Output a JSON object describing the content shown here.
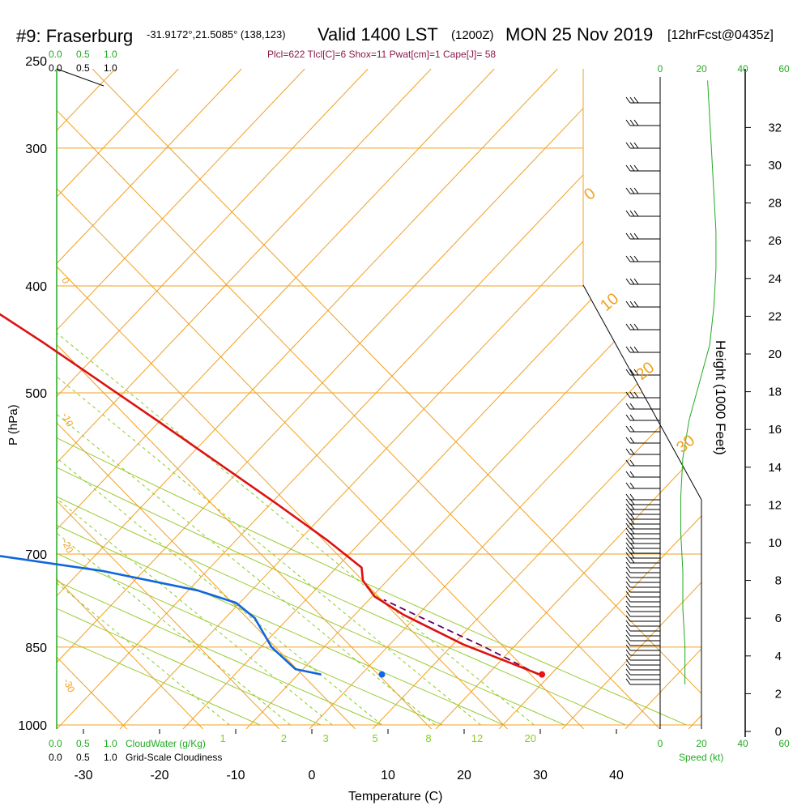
{
  "header": {
    "station": "#9: Fraserburg",
    "coords": "-31.9172°,21.5085° (138,123)",
    "valid": "Valid 1400 LST",
    "zulu": "(1200Z)",
    "date": "MON 25 Nov 2019",
    "forecast": "[12hrFcst@0435z]",
    "indices": "Plcl=622 Tlcl[C]=6 Shox=11 Pwat[cm]=1 Cape[J]= 58"
  },
  "chart_data": {
    "type": "line",
    "xlabel": "Temperature (C)",
    "ylabel": "P (hPa)",
    "right_axis_label": "Height (1000 Feet)",
    "xlim": [
      -35,
      35
    ],
    "x_ticks": [
      "-30",
      "-20",
      "-10",
      "0",
      "10",
      "20",
      "30",
      "40"
    ],
    "p_ticks": [
      "250",
      "300",
      "400",
      "500",
      "700",
      "850",
      "1000"
    ],
    "height_ticks": [
      "0",
      "2",
      "4",
      "6",
      "8",
      "10",
      "12",
      "14",
      "16",
      "18",
      "20",
      "22",
      "24",
      "26",
      "28",
      "30",
      "32"
    ],
    "isotherm_labels": [
      "-30",
      "-20",
      "-10",
      "0",
      "10",
      "20",
      "30"
    ],
    "mixing_ratio_labels": [
      "1",
      "2",
      "3",
      "5",
      "8",
      "12",
      "20"
    ],
    "top_scale_green": [
      "0.0",
      "0.5",
      "1.0"
    ],
    "top_scale_black": [
      "0.0",
      "0.5",
      "1.0"
    ],
    "bottom_scale_green": [
      "0.0",
      "0.5",
      "1.0"
    ],
    "bottom_scale_black": [
      "0.0",
      "0.5",
      "1.0"
    ],
    "cloudwater_label": "CloudWater (g/Kg)",
    "cloudiness_label": "Grid-Scale Cloudiness",
    "speed_ticks": [
      "0",
      "20",
      "40",
      "60"
    ],
    "speed_label": "Speed (kt)",
    "temperature": {
      "color": "#dd1111",
      "points": [
        [
          31.2,
          900
        ],
        [
          25,
          845
        ],
        [
          21,
          795
        ],
        [
          19.5,
          765
        ],
        [
          20,
          740
        ],
        [
          21.5,
          720
        ],
        [
          20.5,
          680
        ],
        [
          18.5,
          630
        ],
        [
          13.5,
          530
        ],
        [
          8.5,
          450
        ],
        [
          3,
          385
        ],
        [
          -4.5,
          315
        ],
        [
          -8.5,
          280
        ]
      ]
    },
    "dewpoint": {
      "color": "#1166dd",
      "points": [
        [
          2.5,
          900
        ],
        [
          -0.2,
          890
        ],
        [
          -0.5,
          850
        ],
        [
          1,
          800
        ],
        [
          0.5,
          775
        ],
        [
          -3,
          755
        ],
        [
          -13,
          725
        ],
        [
          -26,
          700
        ],
        [
          -25,
          680
        ],
        [
          -27,
          650
        ],
        [
          -30,
          600
        ],
        [
          -34,
          540
        ],
        [
          -38,
          500
        ],
        [
          -40,
          480
        ],
        [
          -39,
          450
        ],
        [
          -38,
          420
        ],
        [
          -36.5,
          390
        ],
        [
          -34,
          360
        ],
        [
          -32,
          340
        ],
        [
          -31,
          320
        ],
        [
          -30.5,
          300
        ],
        [
          -30.5,
          280
        ]
      ]
    },
    "parcel": {
      "color": "#660066",
      "points": [
        [
          31,
          900
        ],
        [
          27.5,
          850
        ],
        [
          23,
          800
        ],
        [
          20.3,
          770
        ]
      ]
    },
    "surface_temp_marker": 31.5,
    "surface_dewpoint_marker": 9.2,
    "surface_pressure": 900,
    "wind_profile": [
      [
        0,
        12
      ],
      [
        2,
        12
      ],
      [
        4,
        11
      ],
      [
        6,
        11
      ],
      [
        8,
        10
      ],
      [
        10,
        10
      ],
      [
        12,
        11
      ],
      [
        14,
        14
      ],
      [
        16,
        19
      ],
      [
        18,
        24
      ],
      [
        20,
        26
      ],
      [
        22,
        27
      ],
      [
        24,
        27
      ],
      [
        26,
        26
      ],
      [
        28,
        25
      ],
      [
        30,
        24
      ],
      [
        32,
        23
      ]
    ]
  }
}
